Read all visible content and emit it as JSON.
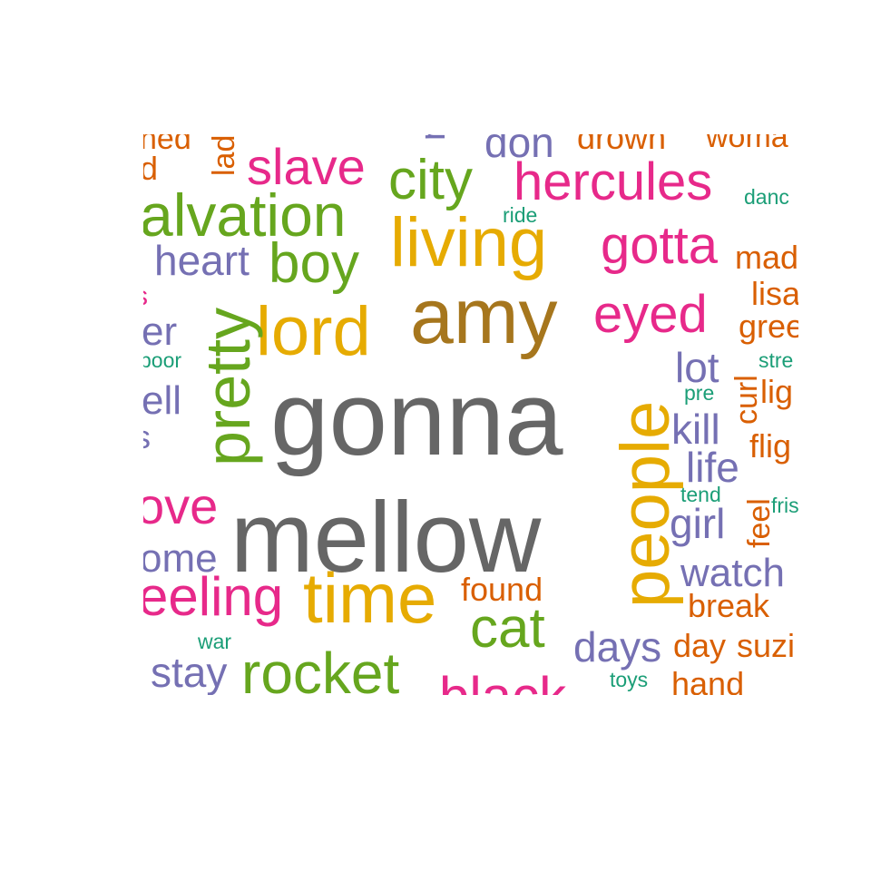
{
  "colors": {
    "gray": "#666666",
    "gold": "#E6AB02",
    "brown": "#A6761D",
    "pink": "#E7298A",
    "green": "#66A61E",
    "purple": "#7570B3",
    "orange": "#D95F02",
    "teal": "#1B9E77"
  },
  "words": [
    {
      "id": "gonna",
      "text": "gonna",
      "color": "gray"
    },
    {
      "id": "mellow",
      "text": "mellow",
      "color": "gray"
    },
    {
      "id": "amy",
      "text": "amy",
      "color": "brown"
    },
    {
      "id": "living",
      "text": "living",
      "color": "gold"
    },
    {
      "id": "lord",
      "text": "lord",
      "color": "gold"
    },
    {
      "id": "time",
      "text": "time",
      "color": "gold"
    },
    {
      "id": "people",
      "text": "people",
      "color": "gold"
    },
    {
      "id": "pretty",
      "text": "pretty",
      "color": "green"
    },
    {
      "id": "city",
      "text": "city",
      "color": "green"
    },
    {
      "id": "boy",
      "text": "boy",
      "color": "green"
    },
    {
      "id": "cat",
      "text": "cat",
      "color": "green"
    },
    {
      "id": "rocket",
      "text": "rocket",
      "color": "green"
    },
    {
      "id": "salvation",
      "text": "alvation",
      "color": "green"
    },
    {
      "id": "slave",
      "text": "slave",
      "color": "pink"
    },
    {
      "id": "hercules",
      "text": "hercules",
      "color": "pink"
    },
    {
      "id": "gotta",
      "text": "gotta",
      "color": "pink"
    },
    {
      "id": "eyed",
      "text": "eyed",
      "color": "pink"
    },
    {
      "id": "love",
      "text": "ove",
      "color": "pink"
    },
    {
      "id": "feeling",
      "text": "eeling",
      "color": "pink"
    },
    {
      "id": "black",
      "text": "black",
      "color": "pink"
    },
    {
      "id": "heart",
      "text": "heart",
      "color": "purple"
    },
    {
      "id": "lot",
      "text": "lot",
      "color": "purple"
    },
    {
      "id": "kill",
      "text": "kill",
      "color": "purple"
    },
    {
      "id": "life",
      "text": "life",
      "color": "purple"
    },
    {
      "id": "girl",
      "text": "girl",
      "color": "purple"
    },
    {
      "id": "watch",
      "text": "watch",
      "color": "purple"
    },
    {
      "id": "days",
      "text": "days",
      "color": "purple"
    },
    {
      "id": "stay",
      "text": "stay",
      "color": "purple"
    },
    {
      "id": "home",
      "text": "ome",
      "color": "purple"
    },
    {
      "id": "tell",
      "text": "ell",
      "color": "purple"
    },
    {
      "id": "never",
      "text": "er",
      "color": "purple"
    },
    {
      "id": "don",
      "text": "don",
      "color": "purple"
    },
    {
      "id": "found",
      "text": "found",
      "color": "orange"
    },
    {
      "id": "break",
      "text": "break",
      "color": "orange"
    },
    {
      "id": "day",
      "text": "day",
      "color": "orange"
    },
    {
      "id": "suzi",
      "text": "suzi",
      "color": "orange"
    },
    {
      "id": "hand",
      "text": "hand",
      "color": "orange"
    },
    {
      "id": "curl",
      "text": "curl",
      "color": "orange"
    },
    {
      "id": "feel",
      "text": "feel",
      "color": "orange"
    },
    {
      "id": "mad",
      "text": "mad",
      "color": "orange"
    },
    {
      "id": "lisa",
      "text": "lisa",
      "color": "orange"
    },
    {
      "id": "green",
      "text": "gree",
      "color": "orange"
    },
    {
      "id": "light",
      "text": "lig",
      "color": "orange"
    },
    {
      "id": "flight",
      "text": "flig",
      "color": "orange"
    },
    {
      "id": "drown",
      "text": "drown",
      "color": "orange"
    },
    {
      "id": "woman",
      "text": "woma",
      "color": "orange"
    },
    {
      "id": "lady",
      "text": "lad",
      "color": "orange"
    },
    {
      "id": "ned",
      "text": "ned",
      "color": "orange"
    },
    {
      "id": "d",
      "text": "d",
      "color": "orange"
    },
    {
      "id": "ride",
      "text": "ride",
      "color": "teal"
    },
    {
      "id": "dance",
      "text": "danc",
      "color": "teal"
    },
    {
      "id": "street",
      "text": "stre",
      "color": "teal"
    },
    {
      "id": "pre",
      "text": "pre",
      "color": "teal"
    },
    {
      "id": "tend",
      "text": "tend",
      "color": "teal"
    },
    {
      "id": "frisco",
      "text": "fris",
      "color": "teal"
    },
    {
      "id": "war",
      "text": "war",
      "color": "teal"
    },
    {
      "id": "toys",
      "text": "toys",
      "color": "teal"
    },
    {
      "id": "poor",
      "text": "poor",
      "color": "teal"
    },
    {
      "id": "frag-s1",
      "text": "s",
      "color": "pink"
    },
    {
      "id": "frag-s2",
      "text": "s",
      "color": "purple"
    },
    {
      "id": "frag-n",
      "text": "n",
      "color": "purple"
    }
  ]
}
